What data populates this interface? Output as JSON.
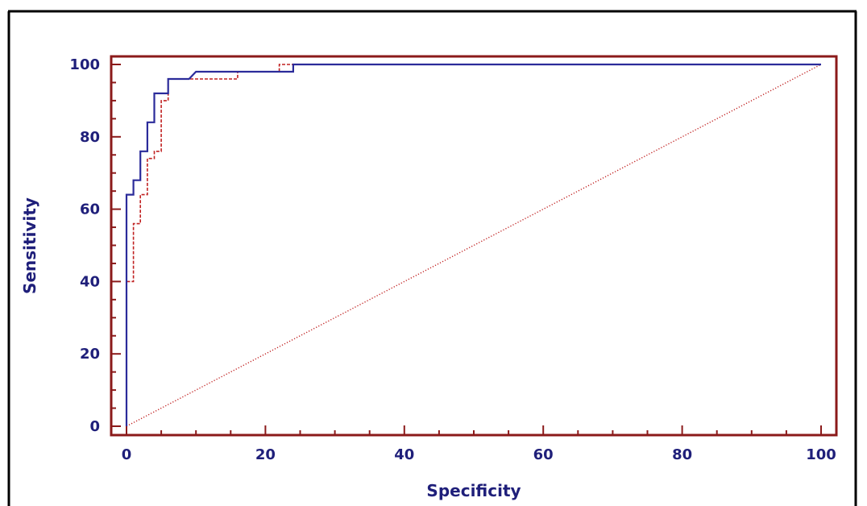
{
  "chart_data": {
    "type": "line",
    "title": "",
    "xlabel": "Specificity",
    "ylabel": "Sensitivity",
    "xlim": [
      0,
      100
    ],
    "ylim": [
      0,
      100
    ],
    "x_ticks": [
      0,
      20,
      40,
      60,
      80,
      100
    ],
    "y_ticks": [
      0,
      20,
      40,
      60,
      80,
      100
    ],
    "grid": false,
    "legend": "none",
    "series": [
      {
        "style": "solid",
        "color": "#2b2b9a",
        "points": [
          [
            0,
            0
          ],
          [
            0,
            64
          ],
          [
            1,
            64
          ],
          [
            1,
            68
          ],
          [
            2,
            68
          ],
          [
            2,
            76
          ],
          [
            3,
            76
          ],
          [
            3,
            84
          ],
          [
            4,
            84
          ],
          [
            4,
            92
          ],
          [
            6,
            92
          ],
          [
            6,
            96
          ],
          [
            9,
            96
          ],
          [
            10,
            98
          ],
          [
            24,
            98
          ],
          [
            24,
            100
          ],
          [
            100,
            100
          ]
        ]
      },
      {
        "style": "dashed",
        "color": "#c02020",
        "points": [
          [
            0,
            0
          ],
          [
            0,
            40
          ],
          [
            1,
            40
          ],
          [
            1,
            56
          ],
          [
            2,
            56
          ],
          [
            2,
            64
          ],
          [
            3,
            64
          ],
          [
            3,
            74
          ],
          [
            4,
            74
          ],
          [
            4,
            76
          ],
          [
            5,
            76
          ],
          [
            5,
            90
          ],
          [
            6,
            90
          ],
          [
            6,
            96
          ],
          [
            16,
            96
          ],
          [
            16,
            98
          ],
          [
            22,
            98
          ],
          [
            22,
            100
          ],
          [
            100,
            100
          ]
        ]
      },
      {
        "style": "dotted",
        "color": "#c02020",
        "points": [
          [
            0,
            0
          ],
          [
            100,
            100
          ]
        ]
      }
    ]
  }
}
